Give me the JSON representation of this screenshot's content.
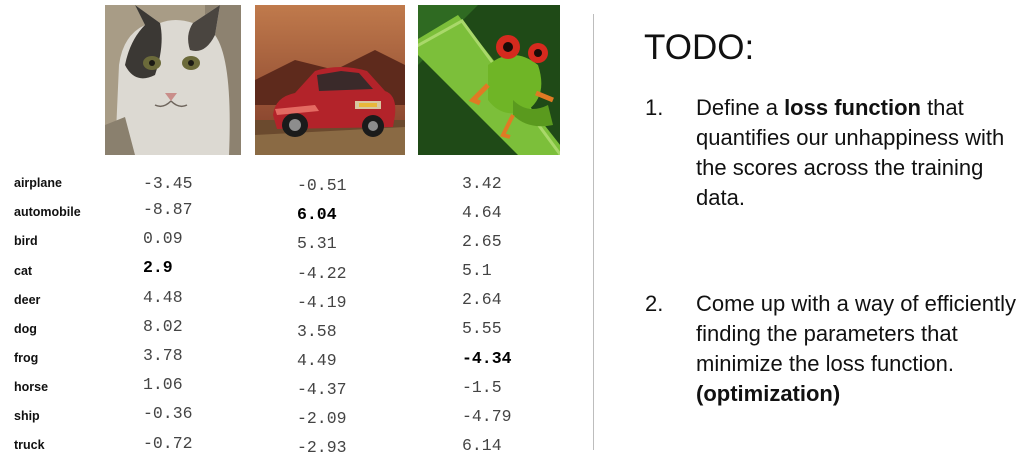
{
  "images": [
    {
      "name": "cat",
      "colors": {
        "fur": "#dcd9d2",
        "dark": "#3b3834",
        "bg": "#a89c86"
      }
    },
    {
      "name": "automobile",
      "colors": {
        "sky": "#9a5b3a",
        "body": "#b3232a",
        "ground": "#6b4a2e"
      }
    },
    {
      "name": "frog",
      "colors": {
        "skin": "#6fb526",
        "eye": "#d52a1e",
        "bg": "#1f4a17"
      }
    }
  ],
  "classes": [
    "airplane",
    "automobile",
    "bird",
    "cat",
    "deer",
    "dog",
    "frog",
    "horse",
    "ship",
    "truck"
  ],
  "scores": {
    "cat": [
      "-3.45",
      "-8.87",
      "0.09",
      "2.9",
      "4.48",
      "8.02",
      "3.78",
      "1.06",
      "-0.36",
      "-0.72"
    ],
    "car": [
      "-0.51",
      "6.04",
      "5.31",
      "-4.22",
      "-4.19",
      "3.58",
      "4.49",
      "-4.37",
      "-2.09",
      "-2.93"
    ],
    "frog": [
      "3.42",
      "4.64",
      "2.65",
      "5.1",
      "2.64",
      "5.55",
      "-4.34",
      "-1.5",
      "-4.79",
      "6.14"
    ]
  },
  "highlighted": {
    "cat": 3,
    "car": 1,
    "frog": 6
  },
  "todo": {
    "title": "TODO:",
    "item1": {
      "number": "1.",
      "prefix": "Define a ",
      "bold": "loss function",
      "suffix": " that quantifies our unhappiness with the scores across the training data."
    },
    "item2": {
      "number": "2.",
      "text": "Come up with a way of efficiently finding the parameters that minimize the loss function.",
      "bold": "(optimization)"
    }
  }
}
